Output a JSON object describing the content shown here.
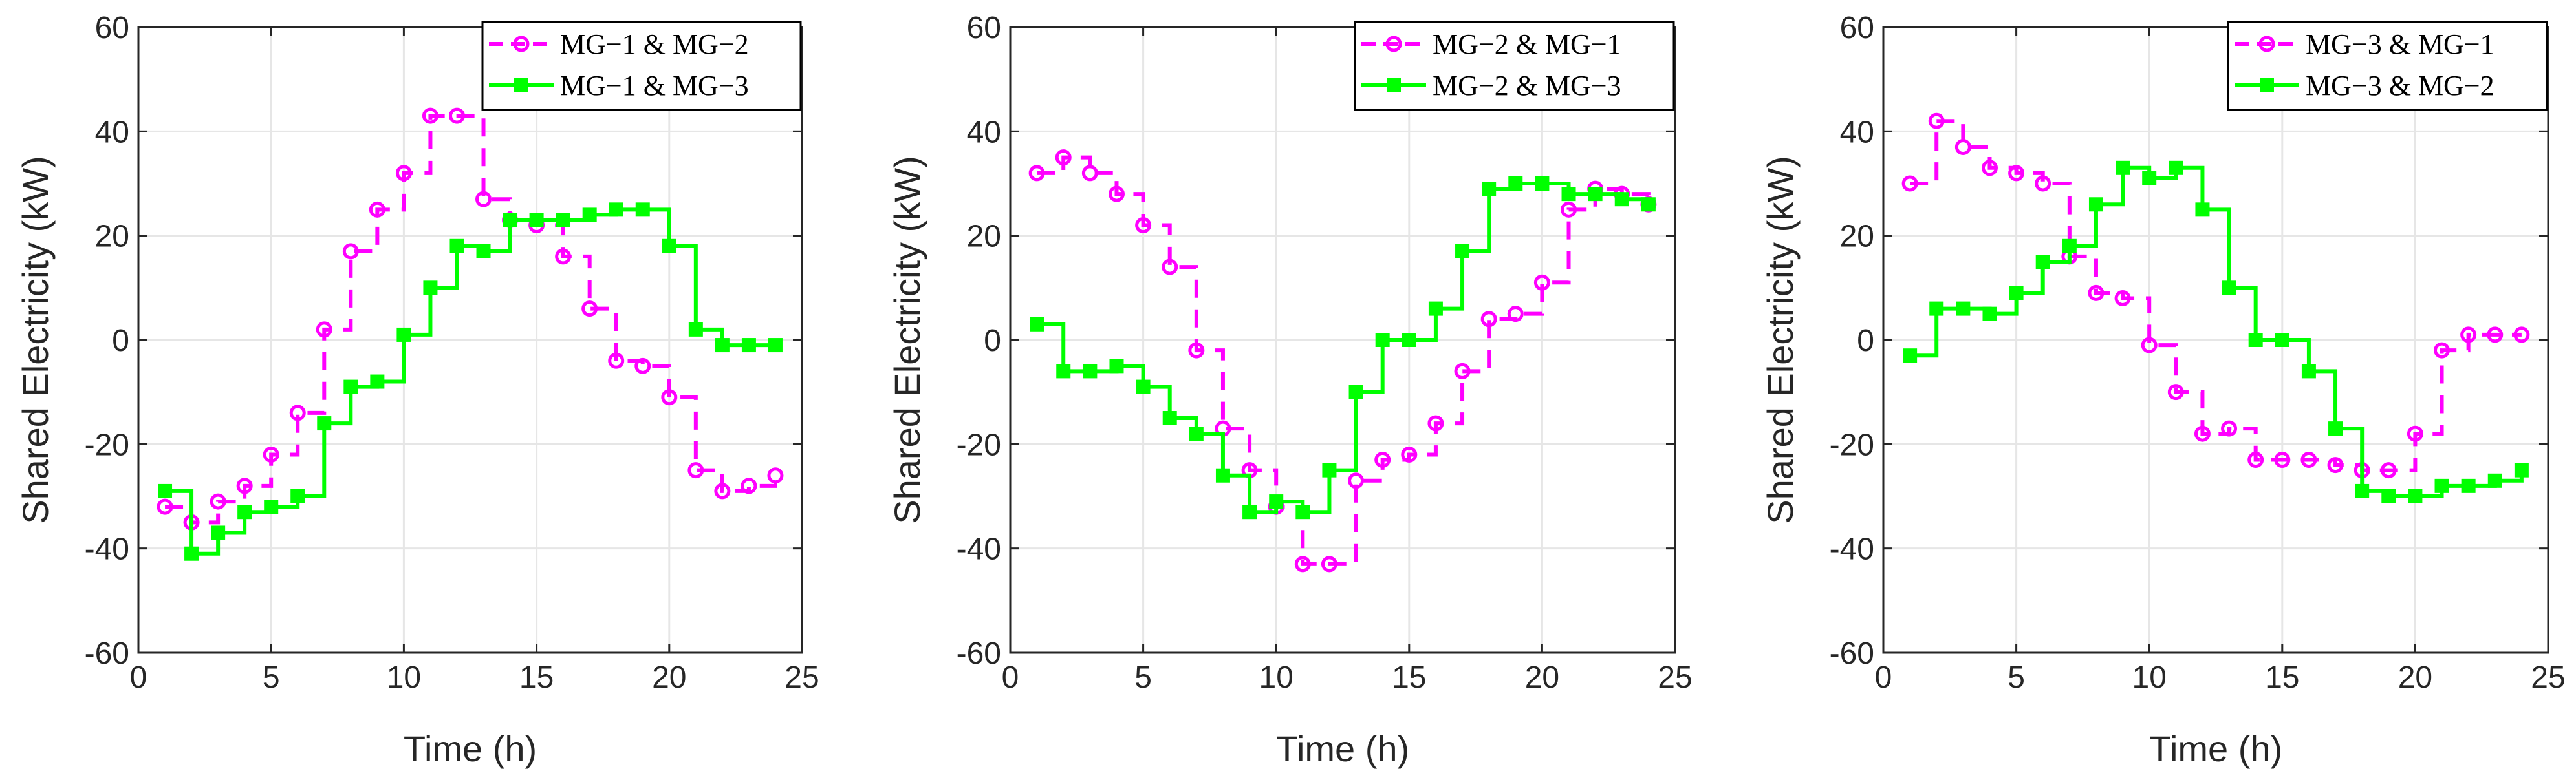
{
  "colors": {
    "series_1": "#ff00ff",
    "series_2": "#00ff00",
    "grid": "#e6e6e6",
    "axis": "#262626"
  },
  "chart_data": [
    {
      "type": "line",
      "step": "post",
      "xlabel": "Time (h)",
      "ylabel": "Shared Electricity (kW)",
      "xlim": [
        0,
        25
      ],
      "ylim": [
        -60,
        60
      ],
      "xticks": [
        "0",
        "5",
        "10",
        "15",
        "20",
        "25"
      ],
      "yticks": [
        "-60",
        "-40",
        "-20",
        "0",
        "20",
        "40",
        "60"
      ],
      "grid": true,
      "legend_position": "top-right",
      "x": [
        1,
        2,
        3,
        4,
        5,
        6,
        7,
        8,
        9,
        10,
        11,
        12,
        13,
        14,
        15,
        16,
        17,
        18,
        19,
        20,
        21,
        22,
        23,
        24
      ],
      "series": [
        {
          "name": "MG−1 & MG−2",
          "marker": "circle",
          "line": "dashed",
          "values": [
            -32,
            -35,
            -31,
            -28,
            -22,
            -14,
            2,
            17,
            25,
            32,
            43,
            43,
            27,
            23,
            22,
            16,
            6,
            -4,
            -5,
            -11,
            -25,
            -29,
            -28,
            -26
          ]
        },
        {
          "name": "MG−1 & MG−3",
          "marker": "square",
          "line": "solid",
          "values": [
            -29,
            -41,
            -37,
            -33,
            -32,
            -30,
            -16,
            -9,
            -8,
            1,
            10,
            18,
            17,
            23,
            23,
            23,
            24,
            25,
            25,
            18,
            2,
            -1,
            -1,
            -1
          ]
        }
      ]
    },
    {
      "type": "line",
      "step": "post",
      "xlabel": "Time (h)",
      "ylabel": "Shared Electricity (kW)",
      "xlim": [
        0,
        25
      ],
      "ylim": [
        -60,
        60
      ],
      "xticks": [
        "0",
        "5",
        "10",
        "15",
        "20",
        "25"
      ],
      "yticks": [
        "-60",
        "-40",
        "-20",
        "0",
        "20",
        "40",
        "60"
      ],
      "grid": true,
      "legend_position": "top-right",
      "x": [
        1,
        2,
        3,
        4,
        5,
        6,
        7,
        8,
        9,
        10,
        11,
        12,
        13,
        14,
        15,
        16,
        17,
        18,
        19,
        20,
        21,
        22,
        23,
        24
      ],
      "series": [
        {
          "name": "MG−2 & MG−1",
          "marker": "circle",
          "line": "dashed",
          "values": [
            32,
            35,
            32,
            28,
            22,
            14,
            -2,
            -17,
            -25,
            -32,
            -43,
            -43,
            -27,
            -23,
            -22,
            -16,
            -6,
            4,
            5,
            11,
            25,
            29,
            28,
            26
          ]
        },
        {
          "name": "MG−2 & MG−3",
          "marker": "square",
          "line": "solid",
          "values": [
            3,
            -6,
            -6,
            -5,
            -9,
            -15,
            -18,
            -26,
            -33,
            -31,
            -33,
            -25,
            -10,
            0,
            0,
            6,
            17,
            29,
            30,
            30,
            28,
            28,
            27,
            26
          ]
        }
      ]
    },
    {
      "type": "line",
      "step": "post",
      "xlabel": "Time (h)",
      "ylabel": "Shared Electricity (kW)",
      "xlim": [
        0,
        25
      ],
      "ylim": [
        -60,
        60
      ],
      "xticks": [
        "0",
        "5",
        "10",
        "15",
        "20",
        "25"
      ],
      "yticks": [
        "-60",
        "-40",
        "-20",
        "0",
        "20",
        "40",
        "60"
      ],
      "grid": true,
      "legend_position": "top-right",
      "x": [
        1,
        2,
        3,
        4,
        5,
        6,
        7,
        8,
        9,
        10,
        11,
        12,
        13,
        14,
        15,
        16,
        17,
        18,
        19,
        20,
        21,
        22,
        23,
        24
      ],
      "series": [
        {
          "name": "MG−3 & MG−1",
          "marker": "circle",
          "line": "dashed",
          "values": [
            30,
            42,
            37,
            33,
            32,
            30,
            16,
            9,
            8,
            -1,
            -10,
            -18,
            -17,
            -23,
            -23,
            -23,
            -24,
            -25,
            -25,
            -18,
            -2,
            1,
            1,
            1
          ]
        },
        {
          "name": "MG−3 & MG−2",
          "marker": "square",
          "line": "solid",
          "values": [
            -3,
            6,
            6,
            5,
            9,
            15,
            18,
            26,
            33,
            31,
            33,
            25,
            10,
            0,
            0,
            -6,
            -17,
            -29,
            -30,
            -30,
            -28,
            -28,
            -27,
            -25
          ]
        }
      ]
    }
  ]
}
